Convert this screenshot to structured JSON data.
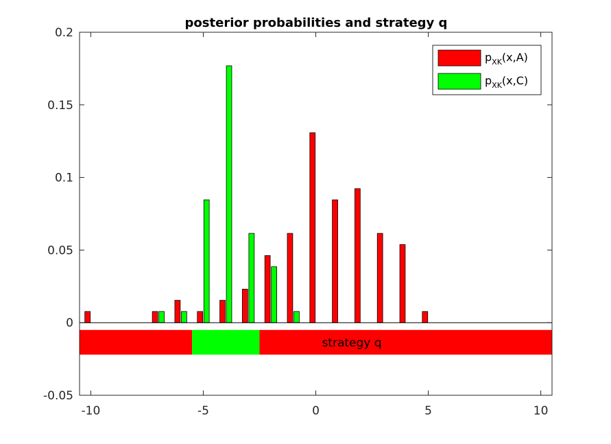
{
  "chart_data": {
    "type": "bar",
    "title": "posterior probabilities and strategy q",
    "xlabel": "",
    "ylabel": "",
    "xlim": [
      -10.5,
      10.5
    ],
    "ylim": [
      -0.05,
      0.2
    ],
    "xticks": [
      -10,
      -5,
      0,
      5,
      10
    ],
    "xtick_labels": [
      "-10",
      "-5",
      "0",
      "5",
      "10"
    ],
    "yticks": [
      -0.05,
      0,
      0.05,
      0.1,
      0.15,
      0.2
    ],
    "ytick_labels": [
      "-0.05",
      "0",
      "0.05",
      "0.1",
      "0.15",
      "0.2"
    ],
    "x": [
      -10,
      -9,
      -8,
      -7,
      -6,
      -5,
      -4,
      -3,
      -2,
      -1,
      0,
      1,
      2,
      3,
      4,
      5,
      6,
      7,
      8,
      9,
      10
    ],
    "series": [
      {
        "name": "pXK(x,A)",
        "color": "#ff0000",
        "values": [
          0.0077,
          0,
          0,
          0.0077,
          0.0154,
          0.0077,
          0.0154,
          0.0231,
          0.0462,
          0.0615,
          0.1308,
          0.0846,
          0.0923,
          0.0615,
          0.0538,
          0.0077,
          0,
          0,
          0,
          0,
          0
        ]
      },
      {
        "name": "pXK(x,C)",
        "color": "#00ff00",
        "values": [
          0,
          0,
          0,
          0.0077,
          0.0077,
          0.0846,
          0.1769,
          0.0615,
          0.0385,
          0.0077,
          0,
          0,
          0,
          0,
          0,
          0,
          0,
          0,
          0,
          0,
          0
        ]
      }
    ],
    "legend": {
      "position": "top-right",
      "entries": [
        {
          "main": "p",
          "sub": "XK",
          "rest": "(x,A)",
          "color": "#ff0000"
        },
        {
          "main": "p",
          "sub": "XK",
          "rest": "(x,C)",
          "color": "#00ff00"
        }
      ]
    },
    "strategy": {
      "label": "strategy q",
      "y_range": [
        -0.022,
        -0.005
      ],
      "segments": [
        {
          "class": "A",
          "from": -10.5,
          "to": -5.5,
          "color": "#ff0000"
        },
        {
          "class": "C",
          "from": -5.5,
          "to": -2.5,
          "color": "#00ff00"
        },
        {
          "class": "A",
          "from": -2.5,
          "to": 10.5,
          "color": "#ff0000"
        }
      ]
    }
  }
}
